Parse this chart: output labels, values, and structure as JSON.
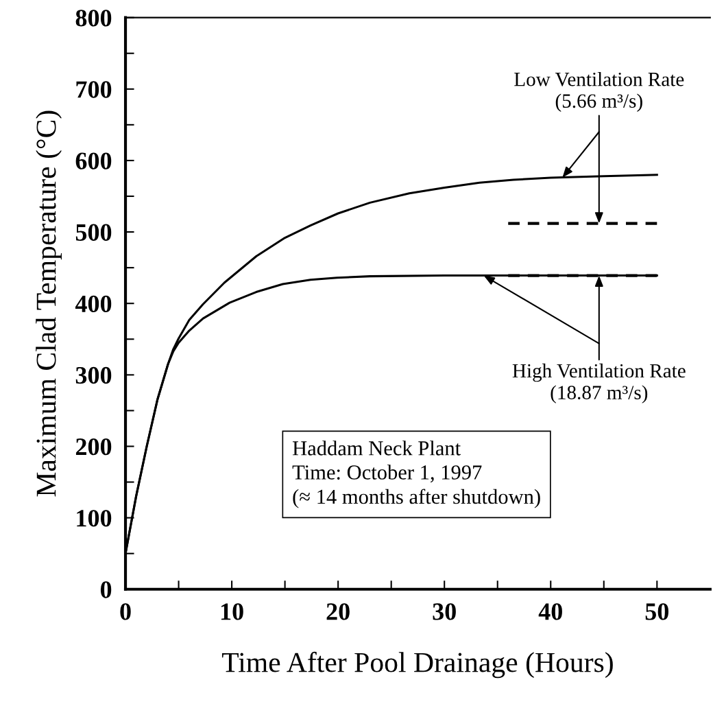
{
  "chart_data": {
    "type": "line",
    "xlabel": "Time After Pool Drainage (Hours)",
    "ylabel": "Maximum Clad Temperature (°C)",
    "xlim": [
      0,
      55
    ],
    "ylim": [
      0,
      800
    ],
    "xticks": [
      0,
      {
        "value": 5,
        "label": null
      },
      10,
      {
        "value": 15,
        "label": null
      },
      20,
      {
        "value": 25,
        "label": null
      },
      30,
      {
        "value": 35,
        "label": null
      },
      40,
      {
        "value": 45,
        "label": null
      },
      50
    ],
    "yticks": [
      0,
      {
        "value": 50,
        "label": null
      },
      100,
      {
        "value": 150,
        "label": null
      },
      200,
      {
        "value": 250,
        "label": null
      },
      300,
      {
        "value": 350,
        "label": null
      },
      400,
      {
        "value": 450,
        "label": null
      },
      500,
      {
        "value": 550,
        "label": null
      },
      600,
      {
        "value": 650,
        "label": null
      },
      700,
      {
        "value": 750,
        "label": null
      },
      800
    ],
    "grid": false,
    "legend": false,
    "marker": "none",
    "series": [
      {
        "color": "#000000",
        "line_style": "solid",
        "x": [
          0,
          1,
          2,
          3,
          4,
          4.5,
          5,
          6,
          7.3,
          9.3,
          12.3,
          14.9,
          17.4,
          20,
          23,
          26.7,
          30,
          33.3,
          36.5,
          40,
          45,
          50
        ],
        "values": [
          50,
          130,
          200,
          265,
          315,
          336,
          351,
          377,
          399,
          429,
          466,
          491,
          509,
          526,
          541,
          554,
          562,
          569,
          573,
          576,
          578,
          580
        ]
      },
      {
        "color": "#000000",
        "line_style": "solid",
        "x": [
          0,
          1,
          2,
          3,
          4,
          4.5,
          5,
          6,
          7.3,
          9.8,
          12.3,
          14.8,
          17.4,
          19.9,
          23,
          30,
          40,
          50
        ],
        "values": [
          50,
          130,
          200,
          265,
          315,
          333,
          345,
          362,
          379,
          401,
          416,
          427,
          433,
          436,
          438,
          439,
          439,
          439
        ]
      },
      {
        "color": "#000000",
        "line_style": "dashed",
        "x": [
          36,
          50
        ],
        "values": [
          512,
          512
        ]
      },
      {
        "color": "#000000",
        "line_style": "dashed",
        "x": [
          36,
          50
        ],
        "values": [
          439,
          439
        ]
      }
    ],
    "annotations": [
      {
        "text": "Low Ventilation Rate\n(5.66 m³/s)",
        "x": 41.1,
        "y": 576
      },
      {
        "text": "High Ventilation Rate\n(18.87 m³/s)",
        "x": 33.7,
        "y": 439
      },
      "Haddam Neck Plant\nTime: October 1, 1997\n(≈ 14 months after shutdown)"
    ]
  }
}
